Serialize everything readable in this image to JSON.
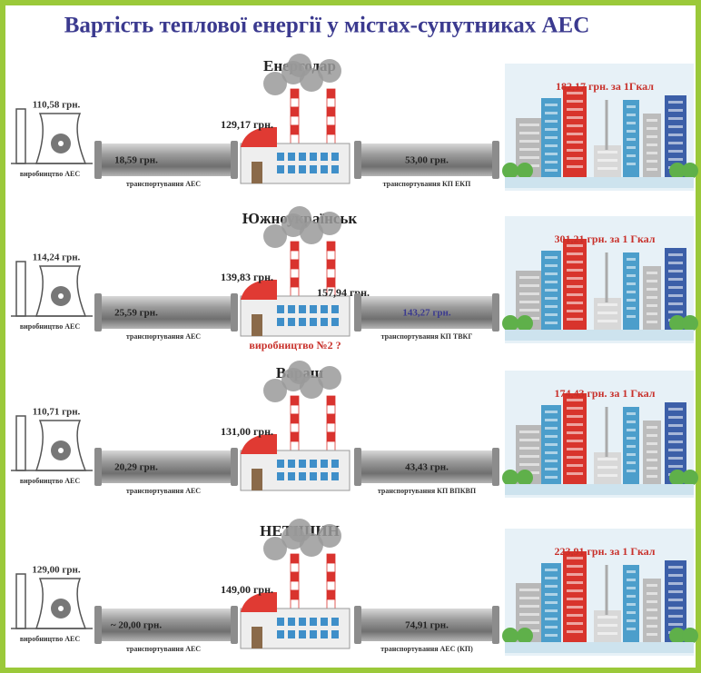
{
  "title": "Вартість теплової енергії у містах-супутниках АЕС",
  "rows": [
    {
      "city": "Енергодар",
      "production_price": "110,58 грн.",
      "production_label": "виробництво АЕС",
      "transport_price": "18,59 грн.",
      "transport_label": "транспортування АЕС",
      "plant_price": "129,17 грн.",
      "network_price": "53,00 грн.",
      "network_label": "транспортування КП ЕКП",
      "total": "182,17 грн. за 1Гкал"
    },
    {
      "city": "Южноукраїнськ",
      "production_price": "114,24 грн.",
      "production_label": "виробництво АЕС",
      "transport_price": "25,59 грн.",
      "transport_label": "транспортування АЕС",
      "plant_price": "139,83 грн.",
      "plant_price_2": "157,94 грн.",
      "plant_label": "виробництво №2 ?",
      "network_price": "143,27 грн.",
      "network_label": "транспортування КП ТВКГ",
      "total": "301,21 грн. за 1 Гкал"
    },
    {
      "city": "Вараш",
      "production_price": "110,71 грн.",
      "production_label": "виробництво АЕС",
      "transport_price": "20,29 грн.",
      "transport_label": "транспортування АЕС",
      "plant_price": "131,00 грн.",
      "network_price": "43,43 грн.",
      "network_label": "транспортування КП ВПКВП",
      "total": "174,43 грн. за 1 Гкал"
    },
    {
      "city": "НЕТІШИН",
      "production_price": "129,00 грн.",
      "production_label": "виробництво АЕС",
      "transport_price": "~ 20,00 грн.",
      "transport_label": "транспортування АЕС",
      "plant_price": "149,00 грн.",
      "network_price": "74,91 грн.",
      "network_label": "транспортування АЕС (КП)",
      "total": "223,91 грн. за 1 Гкал"
    }
  ]
}
